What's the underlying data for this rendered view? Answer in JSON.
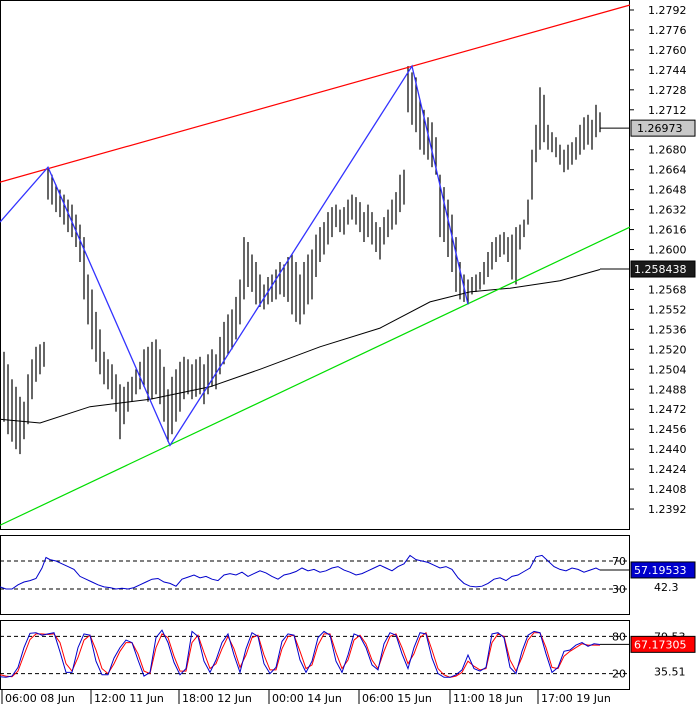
{
  "chart_data": [
    {
      "type": "line",
      "subtype": "ohlc-price",
      "ylim": [
        1.2376,
        1.28
      ],
      "x_labels": [
        "06:00 08 Jun",
        "12:00 11 Jun",
        "18:00 12 Jun",
        "00:00 14 Jun",
        "06:00 15 Jun",
        "11:00 18 Jun",
        "17:00 19 Jun"
      ],
      "y_ticks": [
        "1.2792",
        "1.2776",
        "1.2760",
        "1.2744",
        "1.2728",
        "1.2712",
        "1.2680",
        "1.2664",
        "1.2648",
        "1.2632",
        "1.2616",
        "1.2600",
        "1.2568",
        "1.2552",
        "1.2536",
        "1.2520",
        "1.2504",
        "1.2488",
        "1.2472",
        "1.2456",
        "1.2440",
        "1.2424",
        "1.2408",
        "1.2392"
      ],
      "price_label": "1.26973",
      "price_value": 1.26973,
      "ma_label": "1.258438",
      "ma_value": 1.258438,
      "zigzag": [
        [
          0,
          1.2622
        ],
        [
          48,
          1.2666
        ],
        [
          170,
          1.2443
        ],
        [
          412,
          1.2747
        ],
        [
          468,
          1.2556
        ],
        [
          516,
          1.2571
        ]
      ],
      "upper_channel": [
        [
          0,
          1.2654
        ],
        [
          630,
          1.2796
        ]
      ],
      "lower_channel": [
        [
          0,
          1.2379
        ],
        [
          630,
          1.2618
        ]
      ],
      "moving_average": [
        [
          0,
          1.2464
        ],
        [
          40,
          1.2461
        ],
        [
          90,
          1.2474
        ],
        [
          150,
          1.248
        ],
        [
          210,
          1.249
        ],
        [
          260,
          1.2504
        ],
        [
          320,
          1.2522
        ],
        [
          380,
          1.2537
        ],
        [
          430,
          1.2558
        ],
        [
          470,
          1.2566
        ],
        [
          510,
          1.2569
        ],
        [
          560,
          1.2575
        ],
        [
          600,
          1.2584
        ]
      ],
      "candles": [
        [
          4,
          1.2518,
          1.2462
        ],
        [
          8,
          1.2508,
          1.2452
        ],
        [
          12,
          1.2496,
          1.2446
        ],
        [
          16,
          1.249,
          1.244
        ],
        [
          20,
          1.2482,
          1.2436
        ],
        [
          24,
          1.2478,
          1.2448
        ],
        [
          28,
          1.25,
          1.246
        ],
        [
          32,
          1.2512,
          1.248
        ],
        [
          36,
          1.2522,
          1.2494
        ],
        [
          40,
          1.2524,
          1.25
        ],
        [
          44,
          1.2526,
          1.2506
        ],
        [
          48,
          1.2666,
          1.264
        ],
        [
          52,
          1.266,
          1.2636
        ],
        [
          56,
          1.2652,
          1.263
        ],
        [
          60,
          1.2648,
          1.2626
        ],
        [
          64,
          1.2644,
          1.262
        ],
        [
          68,
          1.264,
          1.2614
        ],
        [
          72,
          1.2636,
          1.261
        ],
        [
          76,
          1.2628,
          1.2602
        ],
        [
          80,
          1.262,
          1.259
        ],
        [
          84,
          1.261,
          1.256
        ],
        [
          88,
          1.258,
          1.254
        ],
        [
          92,
          1.2568,
          1.252
        ],
        [
          96,
          1.255,
          1.251
        ],
        [
          100,
          1.2536,
          1.25
        ],
        [
          104,
          1.2518,
          1.2492
        ],
        [
          108,
          1.2512,
          1.2488
        ],
        [
          112,
          1.2508,
          1.248
        ],
        [
          116,
          1.25,
          1.247
        ],
        [
          120,
          1.2492,
          1.2448
        ],
        [
          124,
          1.249,
          1.246
        ],
        [
          128,
          1.2494,
          1.247
        ],
        [
          132,
          1.2498,
          1.2478
        ],
        [
          136,
          1.2504,
          1.2484
        ],
        [
          140,
          1.251,
          1.2488
        ],
        [
          144,
          1.252,
          1.249
        ],
        [
          148,
          1.2522,
          1.2478
        ],
        [
          152,
          1.2526,
          1.248
        ],
        [
          156,
          1.2528,
          1.2484
        ],
        [
          160,
          1.252,
          1.2476
        ],
        [
          164,
          1.2506,
          1.2462
        ],
        [
          168,
          1.2488,
          1.2446
        ],
        [
          172,
          1.2498,
          1.2452
        ],
        [
          176,
          1.2504,
          1.2462
        ],
        [
          180,
          1.251,
          1.247
        ],
        [
          184,
          1.2514,
          1.248
        ],
        [
          188,
          1.2512,
          1.2484
        ],
        [
          192,
          1.2508,
          1.248
        ],
        [
          196,
          1.2512,
          1.2482
        ],
        [
          200,
          1.2514,
          1.2484
        ],
        [
          204,
          1.2508,
          1.2476
        ],
        [
          208,
          1.2516,
          1.2484
        ],
        [
          212,
          1.252,
          1.249
        ],
        [
          216,
          1.2516,
          1.2488
        ],
        [
          220,
          1.253,
          1.25
        ],
        [
          224,
          1.2542,
          1.2508
        ],
        [
          228,
          1.2548,
          1.2516
        ],
        [
          232,
          1.2552,
          1.252
        ],
        [
          236,
          1.2562,
          1.2528
        ],
        [
          240,
          1.2576,
          1.254
        ],
        [
          244,
          1.261,
          1.256
        ],
        [
          248,
          1.2606,
          1.257
        ],
        [
          252,
          1.2596,
          1.2566
        ],
        [
          256,
          1.259,
          1.2556
        ],
        [
          260,
          1.258,
          1.2554
        ],
        [
          264,
          1.2572,
          1.2552
        ],
        [
          268,
          1.2578,
          1.2556
        ],
        [
          272,
          1.258,
          1.2558
        ],
        [
          276,
          1.2584,
          1.256
        ],
        [
          280,
          1.259,
          1.2564
        ],
        [
          284,
          1.2588,
          1.2562
        ],
        [
          288,
          1.2594,
          1.2558
        ],
        [
          292,
          1.2596,
          1.2548
        ],
        [
          296,
          1.259,
          1.2542
        ],
        [
          300,
          1.258,
          1.254
        ],
        [
          304,
          1.259,
          1.2548
        ],
        [
          308,
          1.2596,
          1.2556
        ],
        [
          312,
          1.26,
          1.256
        ],
        [
          316,
          1.2612,
          1.2578
        ],
        [
          320,
          1.2618,
          1.259
        ],
        [
          324,
          1.2622,
          1.2596
        ],
        [
          328,
          1.263,
          1.2604
        ],
        [
          332,
          1.2634,
          1.261
        ],
        [
          336,
          1.2636,
          1.2618
        ],
        [
          340,
          1.2632,
          1.2614
        ],
        [
          344,
          1.2634,
          1.2612
        ],
        [
          348,
          1.264,
          1.262
        ],
        [
          352,
          1.2644,
          1.2624
        ],
        [
          356,
          1.2642,
          1.262
        ],
        [
          360,
          1.2638,
          1.2614
        ],
        [
          364,
          1.263,
          1.2606
        ],
        [
          368,
          1.2636,
          1.261
        ],
        [
          372,
          1.263,
          1.2604
        ],
        [
          376,
          1.2622,
          1.2598
        ],
        [
          380,
          1.2618,
          1.2592
        ],
        [
          384,
          1.2626,
          1.2604
        ],
        [
          388,
          1.2632,
          1.261
        ],
        [
          392,
          1.264,
          1.2616
        ],
        [
          396,
          1.2646,
          1.262
        ],
        [
          400,
          1.266,
          1.263
        ],
        [
          404,
          1.2664,
          1.2636
        ],
        [
          408,
          1.2747,
          1.271
        ],
        [
          412,
          1.2742,
          1.27
        ],
        [
          416,
          1.2738,
          1.2694
        ],
        [
          420,
          1.272,
          1.268
        ],
        [
          424,
          1.2712,
          1.2676
        ],
        [
          428,
          1.2706,
          1.2672
        ],
        [
          432,
          1.2702,
          1.2666
        ],
        [
          436,
          1.269,
          1.266
        ],
        [
          440,
          1.266,
          1.261
        ],
        [
          444,
          1.265,
          1.2606
        ],
        [
          448,
          1.264,
          1.2594
        ],
        [
          452,
          1.2628,
          1.2582
        ],
        [
          456,
          1.261,
          1.2566
        ],
        [
          460,
          1.259,
          1.256
        ],
        [
          464,
          1.258,
          1.2558
        ],
        [
          468,
          1.2576,
          1.2556
        ],
        [
          472,
          1.2578,
          1.2564
        ],
        [
          476,
          1.258,
          1.2566
        ],
        [
          480,
          1.2582,
          1.2568
        ],
        [
          484,
          1.259,
          1.2572
        ],
        [
          488,
          1.2598,
          1.2578
        ],
        [
          492,
          1.2606,
          1.2584
        ],
        [
          496,
          1.261,
          1.259
        ],
        [
          500,
          1.2612,
          1.2594
        ],
        [
          504,
          1.2614,
          1.2596
        ],
        [
          508,
          1.261,
          1.259
        ],
        [
          512,
          1.2612,
          1.2576
        ],
        [
          516,
          1.2618,
          1.2572
        ],
        [
          520,
          1.262,
          1.26
        ],
        [
          524,
          1.2624,
          1.261
        ],
        [
          528,
          1.264,
          1.262
        ],
        [
          532,
          1.268,
          1.264
        ],
        [
          536,
          1.27,
          1.267
        ],
        [
          540,
          1.273,
          1.268
        ],
        [
          544,
          1.2724,
          1.2686
        ],
        [
          548,
          1.27,
          1.268
        ],
        [
          552,
          1.2694,
          1.2678
        ],
        [
          556,
          1.269,
          1.2674
        ],
        [
          560,
          1.2684,
          1.2668
        ],
        [
          564,
          1.268,
          1.2662
        ],
        [
          568,
          1.2684,
          1.2664
        ],
        [
          572,
          1.2686,
          1.2668
        ],
        [
          576,
          1.269,
          1.2672
        ],
        [
          580,
          1.27,
          1.2676
        ],
        [
          584,
          1.2706,
          1.268
        ],
        [
          588,
          1.2708,
          1.2684
        ],
        [
          592,
          1.2704,
          1.268
        ],
        [
          596,
          1.2716,
          1.269
        ],
        [
          600,
          1.271,
          1.2694
        ]
      ]
    },
    {
      "type": "line",
      "subtype": "oscillator",
      "ylim": [
        0,
        100
      ],
      "levels": [
        70,
        30
      ],
      "level_labels": [
        "70",
        "30"
      ],
      "side_values": [
        "69.94",
        "42.3"
      ],
      "current_label": "57.19533",
      "current_value": 57.19533,
      "x": [
        0,
        6,
        12,
        18,
        24,
        30,
        36,
        42,
        46,
        50,
        56,
        62,
        68,
        74,
        80,
        86,
        92,
        98,
        104,
        110,
        116,
        122,
        128,
        134,
        140,
        146,
        152,
        158,
        164,
        170,
        176,
        182,
        188,
        194,
        200,
        206,
        212,
        218,
        224,
        230,
        236,
        242,
        248,
        254,
        260,
        266,
        272,
        278,
        284,
        290,
        296,
        302,
        308,
        314,
        320,
        326,
        332,
        338,
        344,
        350,
        356,
        362,
        368,
        374,
        380,
        386,
        392,
        398,
        404,
        410,
        416,
        422,
        428,
        434,
        440,
        446,
        452,
        458,
        464,
        470,
        476,
        482,
        488,
        494,
        500,
        506,
        512,
        518,
        524,
        530,
        536,
        542,
        548,
        554,
        560,
        566,
        572,
        578,
        584,
        590,
        596,
        600
      ],
      "values": [
        33,
        30,
        30,
        36,
        40,
        42,
        45,
        60,
        75,
        72,
        70,
        66,
        62,
        58,
        48,
        44,
        40,
        36,
        33,
        32,
        30,
        31,
        30,
        32,
        36,
        40,
        44,
        45,
        40,
        38,
        34,
        44,
        47,
        50,
        46,
        48,
        44,
        42,
        50,
        52,
        50,
        54,
        48,
        52,
        56,
        53,
        48,
        44,
        50,
        52,
        55,
        60,
        56,
        58,
        54,
        56,
        60,
        62,
        57,
        54,
        50,
        52,
        56,
        60,
        64,
        60,
        56,
        62,
        66,
        78,
        72,
        70,
        68,
        64,
        60,
        62,
        58,
        46,
        38,
        34,
        33,
        34,
        38,
        44,
        46,
        42,
        48,
        50,
        55,
        60,
        76,
        78,
        70,
        62,
        58,
        56,
        60,
        58,
        54,
        57,
        60,
        57
      ]
    },
    {
      "type": "line",
      "subtype": "stochastic",
      "ylim": [
        0,
        100
      ],
      "levels": [
        80,
        20
      ],
      "level_labels": [
        "80",
        "20"
      ],
      "side_values": [
        "79.53",
        "35.51"
      ],
      "current_label": "67.17305",
      "current_value": 67.17305,
      "x": [
        0,
        6,
        12,
        18,
        24,
        30,
        36,
        42,
        48,
        54,
        60,
        66,
        72,
        78,
        84,
        90,
        96,
        102,
        108,
        114,
        120,
        126,
        132,
        138,
        144,
        150,
        156,
        162,
        168,
        174,
        180,
        186,
        192,
        198,
        204,
        210,
        216,
        222,
        228,
        234,
        240,
        246,
        252,
        258,
        264,
        270,
        276,
        282,
        288,
        294,
        300,
        306,
        312,
        318,
        324,
        330,
        336,
        342,
        348,
        354,
        360,
        366,
        372,
        378,
        384,
        390,
        396,
        402,
        408,
        414,
        420,
        426,
        432,
        438,
        444,
        450,
        456,
        462,
        468,
        474,
        480,
        486,
        492,
        498,
        504,
        510,
        516,
        522,
        528,
        534,
        540,
        546,
        552,
        558,
        564,
        570,
        576,
        582,
        588,
        594,
        600
      ],
      "k": [
        15,
        14,
        16,
        30,
        62,
        85,
        86,
        82,
        84,
        86,
        55,
        22,
        22,
        62,
        84,
        82,
        40,
        18,
        18,
        45,
        62,
        74,
        70,
        42,
        16,
        22,
        78,
        90,
        70,
        38,
        18,
        28,
        88,
        80,
        40,
        22,
        42,
        70,
        84,
        50,
        22,
        60,
        86,
        80,
        36,
        20,
        30,
        72,
        84,
        82,
        42,
        22,
        40,
        78,
        88,
        82,
        40,
        22,
        50,
        84,
        80,
        62,
        34,
        26,
        68,
        86,
        82,
        52,
        28,
        62,
        86,
        84,
        45,
        20,
        14,
        14,
        18,
        26,
        50,
        28,
        24,
        30,
        84,
        86,
        78,
        30,
        20,
        56,
        82,
        88,
        86,
        52,
        22,
        30,
        56,
        58,
        66,
        70,
        64,
        68,
        67
      ],
      "d": [
        18,
        16,
        15,
        24,
        50,
        75,
        84,
        84,
        83,
        84,
        70,
        36,
        24,
        46,
        74,
        82,
        58,
        28,
        20,
        36,
        56,
        70,
        70,
        52,
        24,
        20,
        62,
        84,
        78,
        48,
        24,
        24,
        70,
        82,
        54,
        28,
        36,
        60,
        80,
        60,
        30,
        50,
        78,
        82,
        50,
        26,
        26,
        60,
        80,
        82,
        56,
        28,
        34,
        66,
        84,
        84,
        54,
        28,
        42,
        74,
        82,
        68,
        42,
        28,
        56,
        80,
        84,
        62,
        36,
        52,
        78,
        86,
        58,
        28,
        18,
        14,
        16,
        22,
        40,
        32,
        26,
        28,
        70,
        84,
        80,
        42,
        24,
        46,
        74,
        86,
        86,
        62,
        30,
        28,
        48,
        56,
        62,
        68,
        66,
        66,
        66
      ]
    }
  ]
}
